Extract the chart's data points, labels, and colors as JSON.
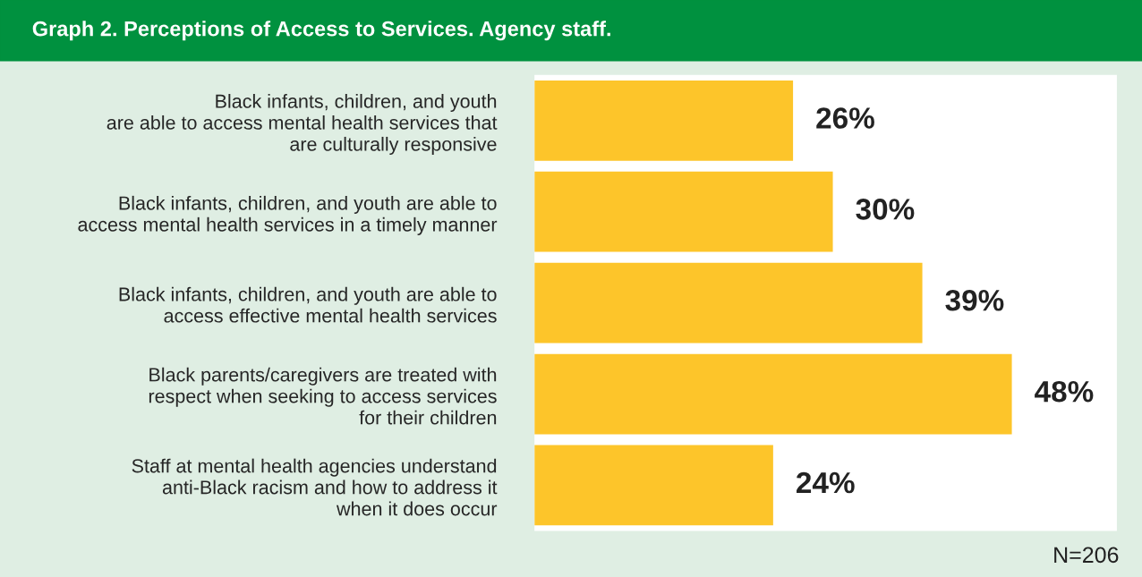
{
  "chart_data": {
    "type": "bar",
    "orientation": "horizontal",
    "title": "Graph 2. Perceptions of Access to Services. Agency staff.",
    "categories": [
      "Black infants, children, and youth\nare able to access mental health services that\nare culturally responsive",
      "Black infants, children, and youth are able to\naccess mental health services in a timely manner",
      "Black infants, children, and youth are able to\naccess effective mental health services",
      "Black parents/caregivers are treated with\nrespect when seeking to access services\nfor their children",
      "Staff at mental health agencies understand\nanti-Black racism and how to address it\nwhen it does occur"
    ],
    "values": [
      26,
      30,
      39,
      48,
      24
    ],
    "value_labels": [
      "26%",
      "30%",
      "39%",
      "48%",
      "24%"
    ],
    "color": "#fdc52a",
    "annotations": [
      "N=206"
    ],
    "grid": false,
    "legend": false
  }
}
